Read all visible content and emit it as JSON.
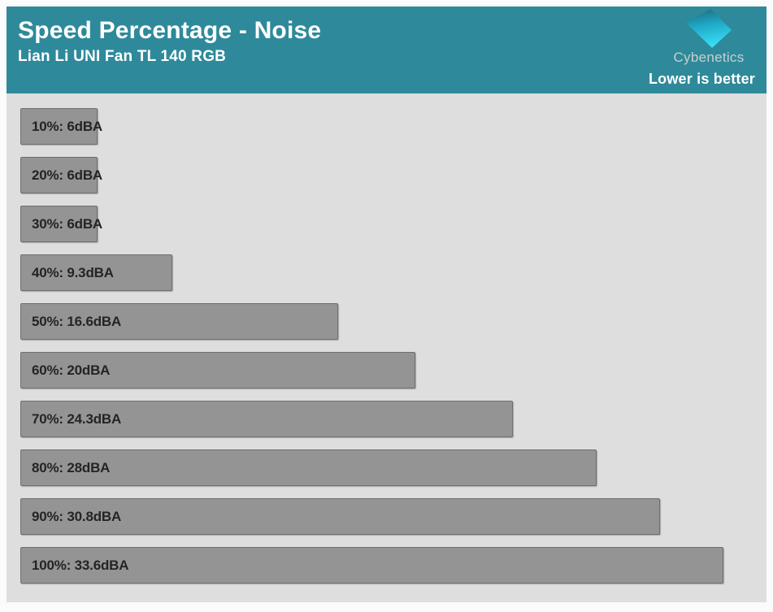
{
  "header": {
    "title": "Speed Percentage - Noise",
    "subtitle": "Lian Li UNI Fan TL 140 RGB",
    "note": "Lower is better",
    "brand": "Cybenetics",
    "colors": {
      "header_bg": "#2e8a9a",
      "header_text": "#ffffff",
      "brand_text": "#c9ced2"
    }
  },
  "chart_data": {
    "type": "bar",
    "orientation": "horizontal",
    "title": "Speed Percentage - Noise",
    "subtitle": "Lian Li UNI Fan TL 140 RGB",
    "note": "Lower is better",
    "unit": "dBA",
    "categories": [
      "10%",
      "20%",
      "30%",
      "40%",
      "50%",
      "60%",
      "70%",
      "80%",
      "90%",
      "100%"
    ],
    "values": [
      6,
      6,
      6,
      9.3,
      16.6,
      20,
      24.3,
      28,
      30.8,
      33.6
    ],
    "bar_labels": [
      "10%: 6dBA",
      "20%: 6dBA",
      "30%: 6dBA",
      "40%: 9.3dBA",
      "50%: 16.6dBA",
      "60%: 20dBA",
      "70%: 24.3dBA",
      "80%: 28dBA",
      "90%: 30.8dBA",
      "100%: 33.6dBA"
    ],
    "xlabel": "",
    "ylabel": "",
    "xlim": [
      2.6,
      35.5
    ],
    "grid": false,
    "legend": false,
    "colors": {
      "plot_bg": "#dedede",
      "bar_fill": "#949494",
      "bar_border": "#6f6f6f",
      "bar_label_text": "#242424"
    }
  }
}
